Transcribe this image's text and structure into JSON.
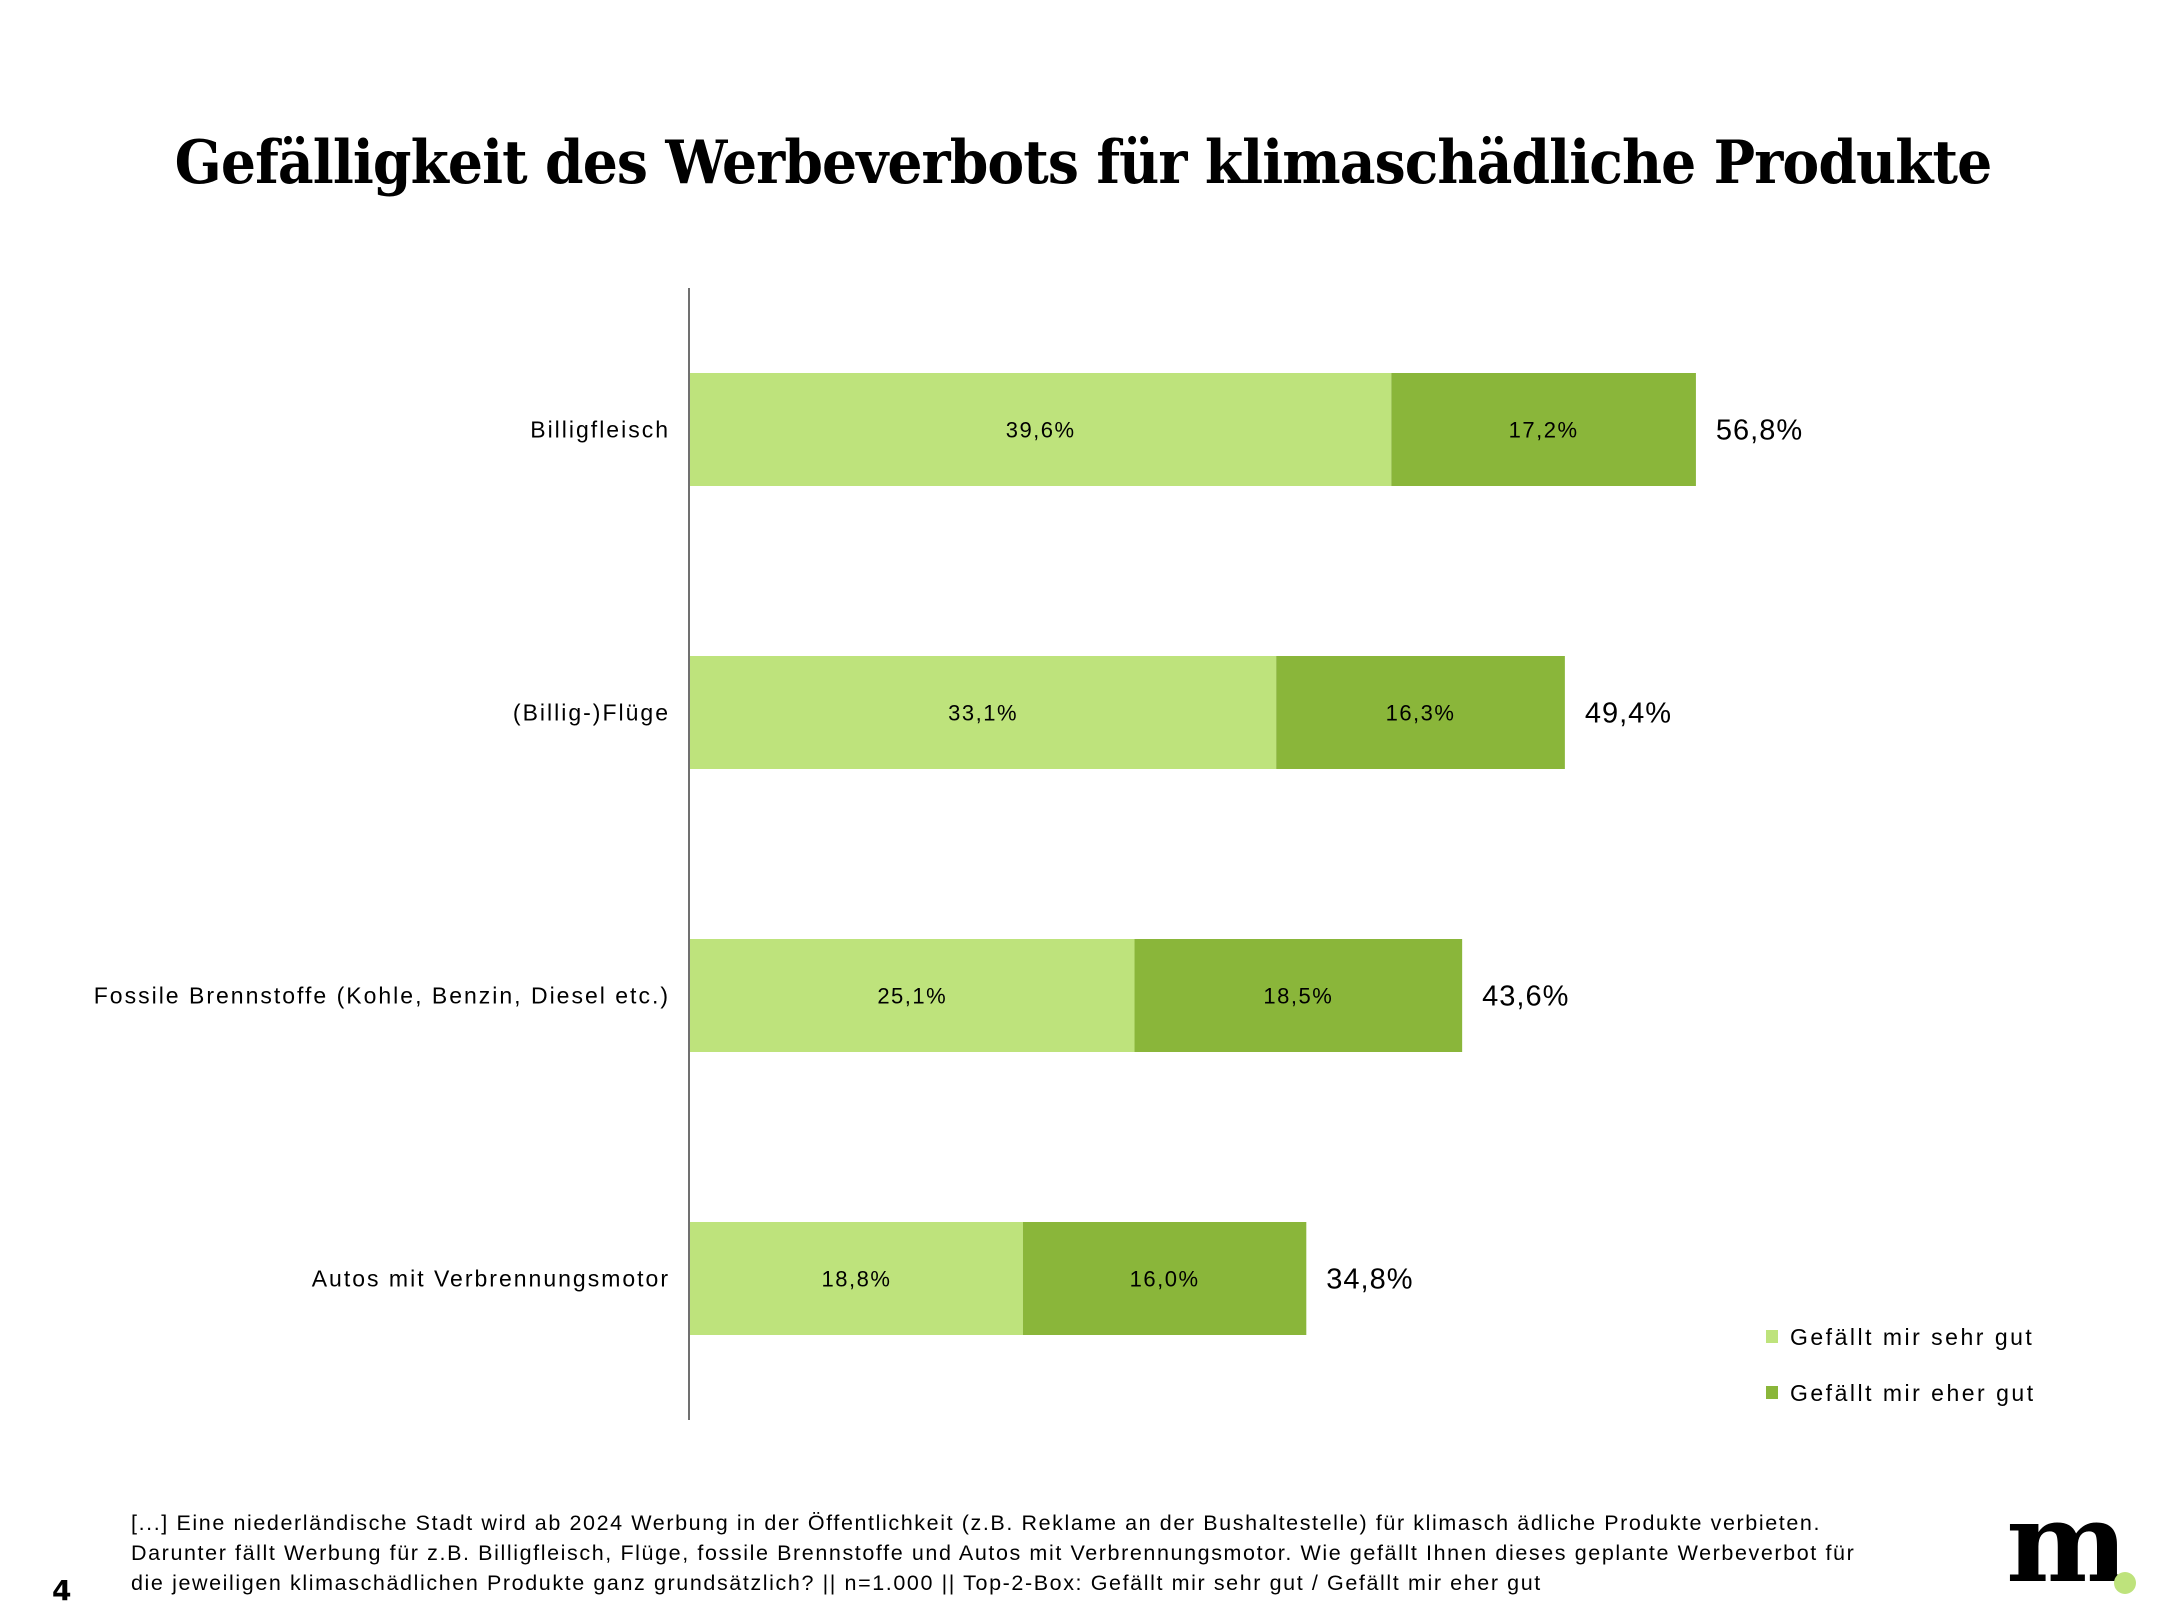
{
  "chart_data": {
    "type": "bar",
    "orientation": "horizontal",
    "stacked": true,
    "title": "Gefälligkeit des Werbeverbots für klimaschädliche Produkte",
    "xlabel": "",
    "ylabel": "",
    "xlim": [
      0,
      60
    ],
    "grid": false,
    "legend_position": "bottom-right",
    "categories": [
      "Billigfleisch",
      "(Billig-)Flüge",
      "Fossile Brennstoffe (Kohle, Benzin, Diesel etc.)",
      "Autos mit Verbrennungsmotor"
    ],
    "series": [
      {
        "name": "Gefällt mir sehr gut",
        "color": "#bee37c",
        "values": [
          39.6,
          33.1,
          25.1,
          18.8
        ],
        "labels": [
          "39,6%",
          "33,1%",
          "25,1%",
          "18,8%"
        ]
      },
      {
        "name": "Gefällt mir eher gut",
        "color": "#8ab63a",
        "values": [
          17.2,
          16.3,
          18.5,
          16.0
        ],
        "labels": [
          "17,2%",
          "16,3%",
          "18,5%",
          "16,0%"
        ]
      }
    ],
    "totals": [
      56.8,
      49.4,
      43.6,
      34.8
    ],
    "total_labels": [
      "56,8%",
      "49,4%",
      "43,6%",
      "34,8%"
    ]
  },
  "footnote": {
    "lines": [
      "[...] Eine niederländische Stadt wird ab 2024 Werbung in der Öffentlichkeit (z.B. Reklame an der Bushaltestelle) für klimasch ädliche Produkte verbieten.",
      "Darunter fällt Werbung für z.B. Billigfleisch, Flüge, fossile Brennstoffe und Autos mit Verbrennungsmotor. Wie gefällt Ihnen  dieses geplante Werbeverbot für",
      "die jeweiligen klimaschädlichen Produkte ganz grundsätzlich? || n=1.000 || Top-2-Box: Gefällt mir sehr gut / Gefällt mir eher gut"
    ]
  },
  "page_number": "4",
  "logo": {
    "text": "m",
    "dot_color": "#bee37c"
  }
}
